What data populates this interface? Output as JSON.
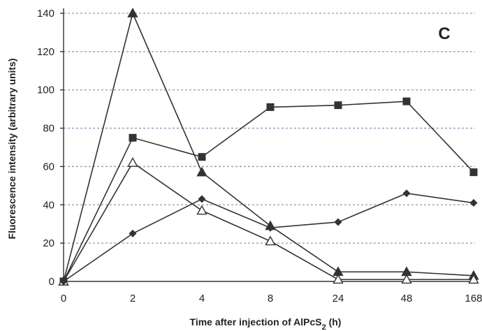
{
  "chart_data": {
    "type": "line",
    "panel_label": "C",
    "xlabel": "Time after injection of AlPcS",
    "xlabel_subscript": "2",
    "xlabel_suffix": " (h)",
    "ylabel": "Fluorescence intensity (arbitrary units)",
    "categories": [
      "0",
      "2",
      "4",
      "8",
      "24",
      "48",
      "168"
    ],
    "x_scale": "categorical",
    "ylim": [
      0,
      140
    ],
    "yticks": [
      0,
      20,
      40,
      60,
      80,
      100,
      120,
      140
    ],
    "grid": "horizontal dashed",
    "legend": "none",
    "series": [
      {
        "marker": "triangle-filled",
        "values": [
          0,
          140,
          57,
          29,
          5,
          5,
          3
        ]
      },
      {
        "marker": "square-filled",
        "values": [
          0,
          75,
          65,
          91,
          92,
          94,
          57
        ]
      },
      {
        "marker": "triangle-open",
        "values": [
          0,
          62,
          37,
          21,
          1,
          1,
          1
        ]
      },
      {
        "marker": "diamond-filled",
        "values": [
          0,
          25,
          43,
          28,
          31,
          46,
          41
        ]
      }
    ],
    "colors": {
      "line": "#333333",
      "grid": "#8a9bb5"
    }
  }
}
